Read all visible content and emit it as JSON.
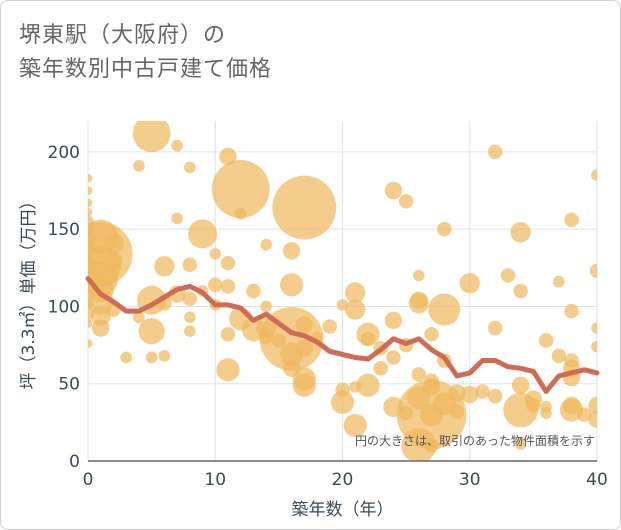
{
  "title_line1": "堺東駅（大阪府）の",
  "title_line2": "築年数別中古戸建て価格",
  "chart_data": {
    "type": "scatter",
    "xlabel": "築年数（年）",
    "ylabel": "坪（3.3㎡）単価（万円）",
    "xlim": [
      0,
      40
    ],
    "ylim": [
      0,
      220
    ],
    "xticks": [
      0,
      10,
      20,
      30,
      40
    ],
    "yticks": [
      0,
      50,
      100,
      150,
      200
    ],
    "grid": true,
    "annotation": "円の大きさは、取引のあった物件面積を示す",
    "colors": {
      "bubble": "#F0B860",
      "line": "#D06C55"
    },
    "series": [
      {
        "type": "line",
        "x": [
          0,
          1,
          2,
          3,
          4,
          5,
          6,
          7,
          8,
          9,
          10,
          11,
          12,
          13,
          14,
          15,
          16,
          17,
          18,
          19,
          20,
          21,
          22,
          23,
          24,
          25,
          26,
          27,
          28,
          29,
          30,
          31,
          32,
          33,
          34,
          35,
          36,
          37,
          38,
          39,
          40
        ],
        "values": [
          118,
          108,
          103,
          97,
          97,
          101,
          106,
          111,
          113,
          109,
          101,
          101,
          99,
          91,
          95,
          89,
          83,
          81,
          77,
          71,
          69,
          67,
          66,
          72,
          79,
          76,
          79,
          72,
          67,
          55,
          57,
          65,
          65,
          61,
          60,
          58,
          45,
          55,
          57,
          59,
          57
        ]
      },
      {
        "type": "scatter",
        "points": [
          {
            "x": 0,
            "y": 183,
            "s": 3
          },
          {
            "x": 0,
            "y": 175,
            "s": 3
          },
          {
            "x": 0,
            "y": 167,
            "s": 3
          },
          {
            "x": 0,
            "y": 161,
            "s": 3
          },
          {
            "x": 0,
            "y": 155,
            "s": 4
          },
          {
            "x": 0,
            "y": 150,
            "s": 4
          },
          {
            "x": 0,
            "y": 143,
            "s": 5
          },
          {
            "x": 0,
            "y": 136,
            "s": 5
          },
          {
            "x": 0,
            "y": 128,
            "s": 5
          },
          {
            "x": 0,
            "y": 120,
            "s": 6
          },
          {
            "x": 0,
            "y": 110,
            "s": 5
          },
          {
            "x": 0,
            "y": 102,
            "s": 4
          },
          {
            "x": 0,
            "y": 95,
            "s": 4
          },
          {
            "x": 0,
            "y": 89,
            "s": 3
          },
          {
            "x": 0,
            "y": 76,
            "s": 3
          },
          {
            "x": 1,
            "y": 145,
            "s": 12
          },
          {
            "x": 1,
            "y": 134,
            "s": 22
          },
          {
            "x": 1,
            "y": 126,
            "s": 14
          },
          {
            "x": 1,
            "y": 118,
            "s": 12
          },
          {
            "x": 1,
            "y": 111,
            "s": 9
          },
          {
            "x": 1,
            "y": 103,
            "s": 9
          },
          {
            "x": 1,
            "y": 94,
            "s": 7
          },
          {
            "x": 1,
            "y": 86,
            "s": 6
          },
          {
            "x": 2,
            "y": 141,
            "s": 7
          },
          {
            "x": 2,
            "y": 130,
            "s": 6
          },
          {
            "x": 2,
            "y": 98,
            "s": 5
          },
          {
            "x": 3,
            "y": 67,
            "s": 4
          },
          {
            "x": 4,
            "y": 191,
            "s": 4
          },
          {
            "x": 4,
            "y": 93,
            "s": 4
          },
          {
            "x": 5,
            "y": 212,
            "s": 13
          },
          {
            "x": 5,
            "y": 104,
            "s": 10
          },
          {
            "x": 5,
            "y": 84,
            "s": 9
          },
          {
            "x": 5,
            "y": 67,
            "s": 4
          },
          {
            "x": 6,
            "y": 126,
            "s": 7
          },
          {
            "x": 6,
            "y": 102,
            "s": 5
          },
          {
            "x": 6,
            "y": 68,
            "s": 4
          },
          {
            "x": 7,
            "y": 204,
            "s": 4
          },
          {
            "x": 7,
            "y": 157,
            "s": 4
          },
          {
            "x": 7,
            "y": 108,
            "s": 6
          },
          {
            "x": 8,
            "y": 190,
            "s": 4
          },
          {
            "x": 8,
            "y": 127,
            "s": 5
          },
          {
            "x": 8,
            "y": 105,
            "s": 5
          },
          {
            "x": 8,
            "y": 93,
            "s": 4
          },
          {
            "x": 8,
            "y": 84,
            "s": 4
          },
          {
            "x": 9,
            "y": 147,
            "s": 10
          },
          {
            "x": 9,
            "y": 110,
            "s": 4
          },
          {
            "x": 10,
            "y": 134,
            "s": 4
          },
          {
            "x": 10,
            "y": 114,
            "s": 5
          },
          {
            "x": 10,
            "y": 101,
            "s": 4
          },
          {
            "x": 11,
            "y": 197,
            "s": 6
          },
          {
            "x": 11,
            "y": 128,
            "s": 5
          },
          {
            "x": 11,
            "y": 113,
            "s": 5
          },
          {
            "x": 11,
            "y": 82,
            "s": 5
          },
          {
            "x": 11,
            "y": 59,
            "s": 8
          },
          {
            "x": 12,
            "y": 176,
            "s": 20
          },
          {
            "x": 12,
            "y": 160,
            "s": 4
          },
          {
            "x": 12,
            "y": 92,
            "s": 8
          },
          {
            "x": 13,
            "y": 110,
            "s": 5
          },
          {
            "x": 13,
            "y": 85,
            "s": 8
          },
          {
            "x": 14,
            "y": 140,
            "s": 4
          },
          {
            "x": 14,
            "y": 100,
            "s": 4
          },
          {
            "x": 14,
            "y": 86,
            "s": 7
          },
          {
            "x": 14,
            "y": 80,
            "s": 5
          },
          {
            "x": 15,
            "y": 78,
            "s": 5
          },
          {
            "x": 16,
            "y": 136,
            "s": 6
          },
          {
            "x": 16,
            "y": 114,
            "s": 8
          },
          {
            "x": 16,
            "y": 79,
            "s": 22
          },
          {
            "x": 16,
            "y": 69,
            "s": 8
          },
          {
            "x": 16,
            "y": 60,
            "s": 6
          },
          {
            "x": 17,
            "y": 164,
            "s": 22
          },
          {
            "x": 17,
            "y": 88,
            "s": 6
          },
          {
            "x": 17,
            "y": 73,
            "s": 6
          },
          {
            "x": 17,
            "y": 53,
            "s": 8
          },
          {
            "x": 17,
            "y": 49,
            "s": 8
          },
          {
            "x": 18,
            "y": 80,
            "s": 4
          },
          {
            "x": 19,
            "y": 87,
            "s": 5
          },
          {
            "x": 20,
            "y": 101,
            "s": 4
          },
          {
            "x": 20,
            "y": 46,
            "s": 5
          },
          {
            "x": 20,
            "y": 38,
            "s": 8
          },
          {
            "x": 21,
            "y": 109,
            "s": 7
          },
          {
            "x": 21,
            "y": 98,
            "s": 7
          },
          {
            "x": 21,
            "y": 48,
            "s": 4
          },
          {
            "x": 21,
            "y": 23,
            "s": 8
          },
          {
            "x": 22,
            "y": 82,
            "s": 8
          },
          {
            "x": 22,
            "y": 79,
            "s": 5
          },
          {
            "x": 22,
            "y": 49,
            "s": 8
          },
          {
            "x": 23,
            "y": 73,
            "s": 5
          },
          {
            "x": 23,
            "y": 60,
            "s": 5
          },
          {
            "x": 24,
            "y": 175,
            "s": 6
          },
          {
            "x": 24,
            "y": 91,
            "s": 6
          },
          {
            "x": 24,
            "y": 67,
            "s": 5
          },
          {
            "x": 24,
            "y": 35,
            "s": 7
          },
          {
            "x": 25,
            "y": 168,
            "s": 5
          },
          {
            "x": 25,
            "y": 75,
            "s": 5
          },
          {
            "x": 25,
            "y": 31,
            "s": 5
          },
          {
            "x": 26,
            "y": 120,
            "s": 4
          },
          {
            "x": 26,
            "y": 104,
            "s": 6
          },
          {
            "x": 26,
            "y": 102,
            "s": 7
          },
          {
            "x": 26,
            "y": 56,
            "s": 5
          },
          {
            "x": 26,
            "y": 41,
            "s": 8
          },
          {
            "x": 26,
            "y": 10,
            "s": 12
          },
          {
            "x": 27,
            "y": 82,
            "s": 5
          },
          {
            "x": 27,
            "y": 52,
            "s": 5
          },
          {
            "x": 27,
            "y": 48,
            "s": 6
          },
          {
            "x": 27,
            "y": 30,
            "s": 24
          },
          {
            "x": 27,
            "y": 30,
            "s": 8
          },
          {
            "x": 27,
            "y": 10,
            "s": 5
          },
          {
            "x": 28,
            "y": 150,
            "s": 5
          },
          {
            "x": 28,
            "y": 98,
            "s": 11
          },
          {
            "x": 28,
            "y": 65,
            "s": 5
          },
          {
            "x": 28,
            "y": 37,
            "s": 8
          },
          {
            "x": 29,
            "y": 44,
            "s": 6
          },
          {
            "x": 29,
            "y": 32,
            "s": 5
          },
          {
            "x": 30,
            "y": 115,
            "s": 7
          },
          {
            "x": 30,
            "y": 43,
            "s": 6
          },
          {
            "x": 31,
            "y": 45,
            "s": 5
          },
          {
            "x": 32,
            "y": 200,
            "s": 5
          },
          {
            "x": 32,
            "y": 86,
            "s": 5
          },
          {
            "x": 32,
            "y": 42,
            "s": 5
          },
          {
            "x": 33,
            "y": 120,
            "s": 5
          },
          {
            "x": 34,
            "y": 148,
            "s": 7
          },
          {
            "x": 34,
            "y": 110,
            "s": 5
          },
          {
            "x": 34,
            "y": 49,
            "s": 6
          },
          {
            "x": 34,
            "y": 33,
            "s": 12
          },
          {
            "x": 34,
            "y": 11,
            "s": 4
          },
          {
            "x": 35,
            "y": 40,
            "s": 6
          },
          {
            "x": 35,
            "y": 36,
            "s": 5
          },
          {
            "x": 36,
            "y": 78,
            "s": 5
          },
          {
            "x": 36,
            "y": 35,
            "s": 4
          },
          {
            "x": 36,
            "y": 31,
            "s": 4
          },
          {
            "x": 37,
            "y": 116,
            "s": 4
          },
          {
            "x": 37,
            "y": 68,
            "s": 5
          },
          {
            "x": 38,
            "y": 156,
            "s": 5
          },
          {
            "x": 38,
            "y": 97,
            "s": 5
          },
          {
            "x": 38,
            "y": 65,
            "s": 5
          },
          {
            "x": 38,
            "y": 60,
            "s": 6
          },
          {
            "x": 38,
            "y": 54,
            "s": 6
          },
          {
            "x": 38,
            "y": 36,
            "s": 6
          },
          {
            "x": 38,
            "y": 33,
            "s": 8
          },
          {
            "x": 39,
            "y": 30,
            "s": 5
          },
          {
            "x": 40,
            "y": 185,
            "s": 4
          },
          {
            "x": 40,
            "y": 123,
            "s": 5
          },
          {
            "x": 40,
            "y": 86,
            "s": 4
          },
          {
            "x": 40,
            "y": 74,
            "s": 4
          },
          {
            "x": 40,
            "y": 36,
            "s": 6
          },
          {
            "x": 40,
            "y": 27,
            "s": 6
          }
        ]
      }
    ]
  }
}
